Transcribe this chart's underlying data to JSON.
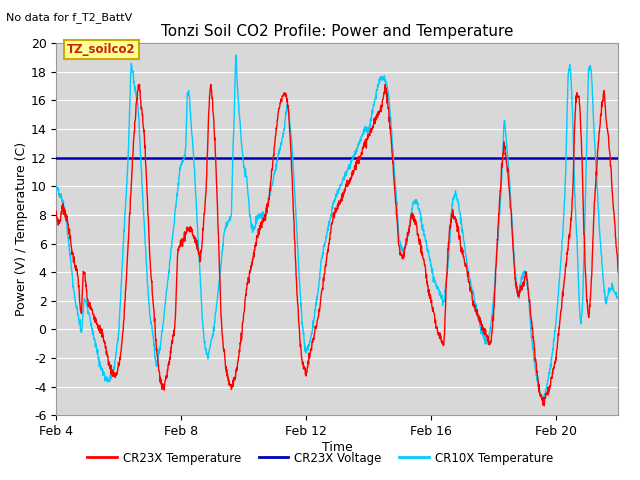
{
  "title": "Tonzi Soil CO2 Profile: Power and Temperature",
  "top_left_note": "No data for f_T2_BattV",
  "ylabel": "Power (V) / Temperature (C)",
  "xlabel": "Time",
  "ylim": [
    -6,
    20
  ],
  "yticks": [
    -6,
    -4,
    -2,
    0,
    2,
    4,
    6,
    8,
    10,
    12,
    14,
    16,
    18,
    20
  ],
  "xtick_labels": [
    "Feb 4",
    "Feb 8",
    "Feb 12",
    "Feb 16",
    "Feb 20"
  ],
  "xtick_positions": [
    0,
    4,
    8,
    12,
    16
  ],
  "xlim": [
    0,
    18
  ],
  "legend_entries": [
    "CR23X Temperature",
    "CR23X Voltage",
    "CR10X Temperature"
  ],
  "legend_colors": [
    "#ff0000",
    "#0000bb",
    "#00ccff"
  ],
  "box_label": "TZ_soilco2",
  "box_color": "#ffff99",
  "box_border": "#ccaa00",
  "plot_bg_color": "#d8d8d8",
  "grid_color": "#ffffff",
  "voltage_value": 12.0,
  "cr23x_color": "#ff0000",
  "voltage_color": "#0000bb",
  "cr10x_color": "#00ccff",
  "title_fontsize": 11,
  "axis_fontsize": 9,
  "note_fontsize": 8
}
